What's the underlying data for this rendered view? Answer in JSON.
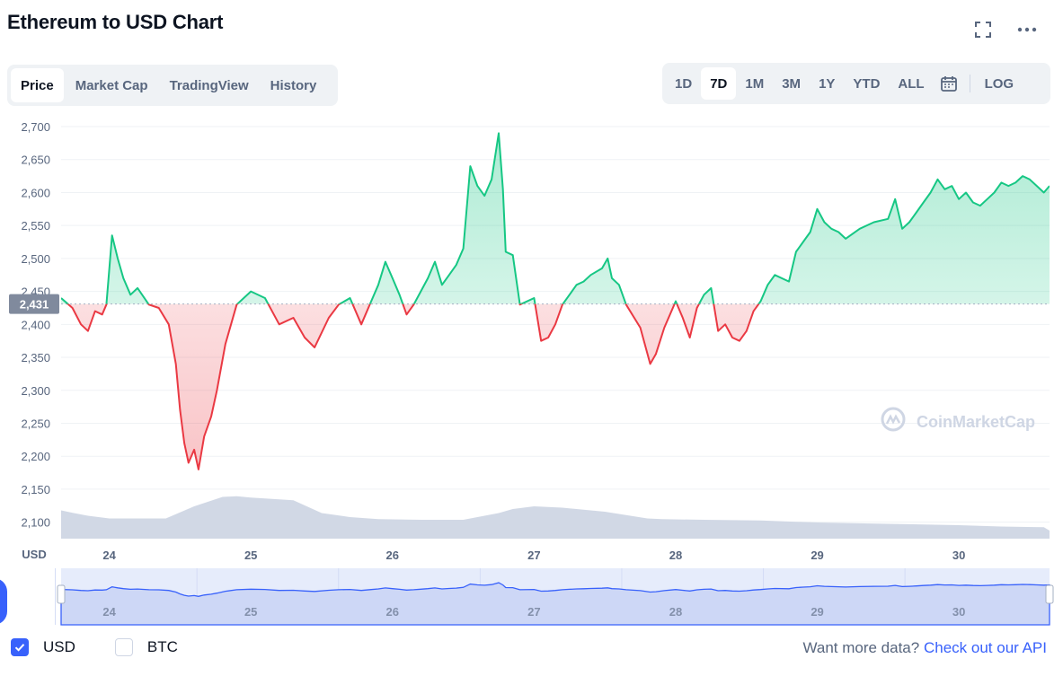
{
  "header": {
    "title": "Ethereum to USD Chart"
  },
  "icons": {
    "fullscreen": "fullscreen-icon",
    "more": "more-icon",
    "calendar": "calendar-icon",
    "check": "check-icon",
    "logo": "coinmarketcap-logo-icon"
  },
  "tabs": [
    {
      "label": "Price",
      "active": true
    },
    {
      "label": "Market Cap",
      "active": false
    },
    {
      "label": "TradingView",
      "active": false
    },
    {
      "label": "History",
      "active": false
    }
  ],
  "ranges": [
    {
      "label": "1D",
      "active": false
    },
    {
      "label": "7D",
      "active": true
    },
    {
      "label": "1M",
      "active": false
    },
    {
      "label": "3M",
      "active": false
    },
    {
      "label": "1Y",
      "active": false
    },
    {
      "label": "YTD",
      "active": false
    },
    {
      "label": "ALL",
      "active": false
    }
  ],
  "log_label": "LOG",
  "watermark": "CoinMarketCap",
  "colors": {
    "up": "#16c784",
    "down": "#ea3943",
    "volume": "#cfd6e4",
    "nav": "#3861fb",
    "accent": "#3861fb"
  },
  "chart_data": {
    "type": "line",
    "title": "Ethereum to USD Chart",
    "currency_label": "USD",
    "baseline_value": 2431,
    "baseline_label": "2,431",
    "y_ticks": [
      "2,700",
      "2,650",
      "2,600",
      "2,550",
      "2,500",
      "2,450",
      "2,400",
      "2,350",
      "2,300",
      "2,250",
      "2,200",
      "2,150",
      "2,100"
    ],
    "ylim": [
      2075,
      2715
    ],
    "xlim": [
      23.66,
      30.64
    ],
    "x_ticks": [
      24,
      25,
      26,
      27,
      28,
      29,
      30
    ],
    "x_tick_labels": [
      "24",
      "25",
      "26",
      "27",
      "28",
      "29",
      "30"
    ],
    "series": [
      {
        "name": "ETH/USD price",
        "x": [
          23.66,
          23.74,
          23.8,
          23.85,
          23.9,
          23.95,
          23.98,
          24.02,
          24.06,
          24.1,
          24.15,
          24.2,
          24.28,
          24.35,
          24.42,
          24.47,
          24.5,
          24.53,
          24.56,
          24.6,
          24.63,
          24.67,
          24.72,
          24.76,
          24.82,
          24.9,
          25.0,
          25.1,
          25.2,
          25.3,
          25.38,
          25.45,
          25.55,
          25.62,
          25.7,
          25.78,
          25.85,
          25.9,
          25.95,
          26.0,
          26.05,
          26.1,
          26.15,
          26.2,
          26.25,
          26.3,
          26.35,
          26.4,
          26.45,
          26.5,
          26.55,
          26.6,
          26.65,
          26.7,
          26.75,
          26.78,
          26.8,
          26.85,
          26.9,
          27.0,
          27.05,
          27.1,
          27.15,
          27.2,
          27.25,
          27.3,
          27.35,
          27.4,
          27.48,
          27.52,
          27.55,
          27.6,
          27.65,
          27.75,
          27.82,
          27.86,
          27.92,
          28.0,
          28.05,
          28.1,
          28.15,
          28.2,
          28.25,
          28.3,
          28.35,
          28.4,
          28.45,
          28.5,
          28.55,
          28.6,
          28.65,
          28.7,
          28.8,
          28.85,
          28.9,
          28.95,
          29.0,
          29.05,
          29.1,
          29.15,
          29.2,
          29.3,
          29.4,
          29.5,
          29.55,
          29.6,
          29.65,
          29.7,
          29.75,
          29.8,
          29.85,
          29.9,
          29.95,
          30.0,
          30.05,
          30.1,
          30.15,
          30.2,
          30.25,
          30.3,
          30.35,
          30.4,
          30.45,
          30.5,
          30.55,
          30.6,
          30.64
        ],
        "y": [
          2440,
          2425,
          2400,
          2390,
          2420,
          2415,
          2430,
          2535,
          2500,
          2470,
          2445,
          2455,
          2430,
          2425,
          2400,
          2340,
          2270,
          2220,
          2190,
          2210,
          2180,
          2230,
          2260,
          2300,
          2370,
          2430,
          2450,
          2440,
          2400,
          2410,
          2380,
          2365,
          2410,
          2430,
          2440,
          2400,
          2435,
          2460,
          2495,
          2470,
          2445,
          2415,
          2430,
          2450,
          2470,
          2495,
          2460,
          2475,
          2490,
          2515,
          2640,
          2610,
          2595,
          2620,
          2690,
          2605,
          2510,
          2505,
          2430,
          2440,
          2375,
          2380,
          2400,
          2430,
          2445,
          2460,
          2465,
          2475,
          2485,
          2500,
          2470,
          2460,
          2430,
          2395,
          2340,
          2355,
          2395,
          2435,
          2410,
          2380,
          2425,
          2445,
          2455,
          2390,
          2400,
          2380,
          2375,
          2390,
          2420,
          2435,
          2460,
          2475,
          2465,
          2510,
          2525,
          2540,
          2575,
          2555,
          2545,
          2540,
          2530,
          2545,
          2555,
          2560,
          2590,
          2545,
          2555,
          2570,
          2585,
          2600,
          2620,
          2605,
          2610,
          2590,
          2600,
          2585,
          2580,
          2590,
          2600,
          2615,
          2610,
          2615,
          2625,
          2620,
          2610,
          2600,
          2610
        ]
      },
      {
        "name": "Volume (relative)",
        "x": [
          23.66,
          23.75,
          23.85,
          24.0,
          24.2,
          24.4,
          24.6,
          24.8,
          24.9,
          25.0,
          25.3,
          25.5,
          25.7,
          25.9,
          26.2,
          26.5,
          26.75,
          26.85,
          27.0,
          27.2,
          27.5,
          27.8,
          27.9,
          28.2,
          28.6,
          29.0,
          29.5,
          30.0,
          30.3,
          30.6,
          30.64
        ],
        "y": [
          0.42,
          0.38,
          0.34,
          0.3,
          0.3,
          0.3,
          0.48,
          0.62,
          0.63,
          0.61,
          0.57,
          0.38,
          0.32,
          0.29,
          0.28,
          0.28,
          0.38,
          0.44,
          0.48,
          0.46,
          0.4,
          0.3,
          0.29,
          0.28,
          0.27,
          0.24,
          0.22,
          0.2,
          0.18,
          0.17,
          0.12
        ]
      }
    ],
    "legend": []
  },
  "footer": {
    "usd_label": "USD",
    "btc_label": "BTC",
    "usd_checked": true,
    "btc_checked": false,
    "more_text": "Want more data?",
    "api_link": "Check out our API"
  }
}
